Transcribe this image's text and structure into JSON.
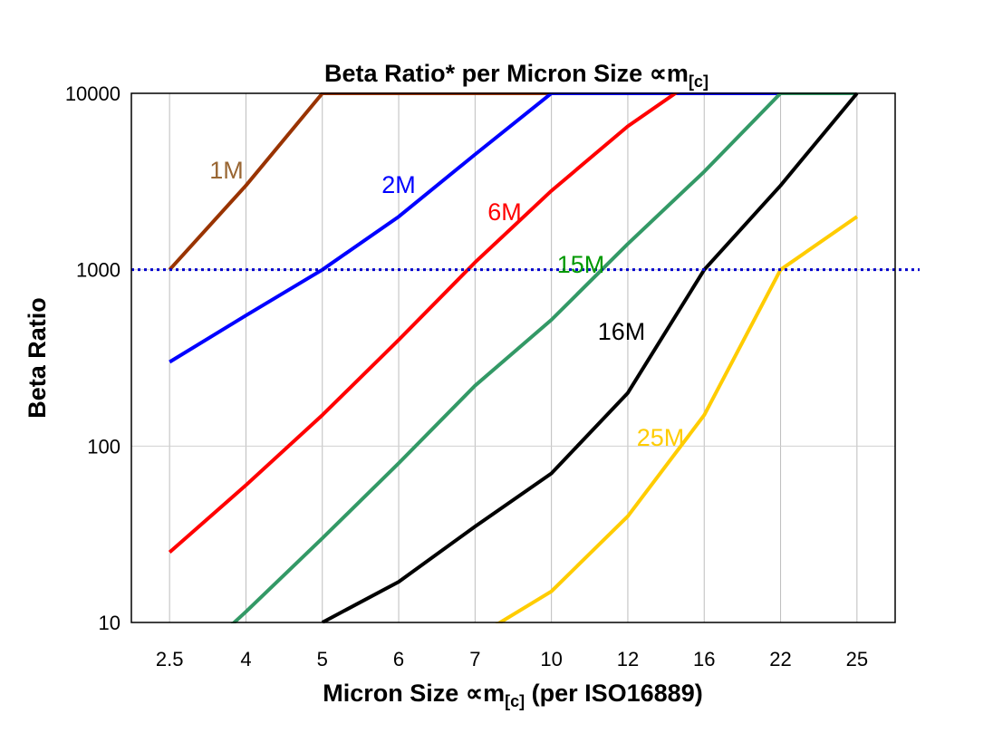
{
  "chart_data": {
    "type": "line",
    "title": {
      "main": "Beta Ratio* per Micron Size ∝m",
      "sub": "[c]"
    },
    "xlabel": {
      "main": "Micron Size ∝m",
      "sub": "[c]",
      "suffix": " (per ISO16889)"
    },
    "ylabel": "Beta Ratio",
    "y_scale": "log",
    "ylim": [
      10,
      10000
    ],
    "y_ticks": [
      "10",
      "100",
      "1000",
      "10000"
    ],
    "y_tick_values": [
      10,
      100,
      1000,
      10000
    ],
    "categories": [
      "2.5",
      "4",
      "5",
      "6",
      "7",
      "10",
      "12",
      "16",
      "22",
      "25"
    ],
    "grid": "vertical and horizontal",
    "reference_line": {
      "value": 1000,
      "color": "#0000cc",
      "style": "dotted"
    },
    "series": [
      {
        "name": "1M",
        "color": "#993300",
        "label_color": "#996633",
        "values": [
          1000,
          3000,
          10000,
          10000,
          10000,
          10000,
          10000,
          10000,
          10000,
          10000
        ]
      },
      {
        "name": "2M",
        "color": "#0000ff",
        "label_color": "#0000ff",
        "values": [
          300,
          550,
          1000,
          2000,
          4500,
          10000,
          10000,
          10000,
          10000,
          10000
        ]
      },
      {
        "name": "6M",
        "color": "#ff0000",
        "label_color": "#ff0000",
        "values": [
          25,
          60,
          150,
          400,
          1100,
          2800,
          6500,
          13000,
          13000,
          13000
        ]
      },
      {
        "name": "15M",
        "color": "#339966",
        "label_color": "#009900",
        "values": [
          4.6,
          11.5,
          30,
          80,
          220,
          520,
          1400,
          3600,
          10000,
          10000
        ]
      },
      {
        "name": "16M",
        "color": "#000000",
        "label_color": "#000000",
        "values": [
          null,
          null,
          10,
          17,
          35,
          70,
          200,
          1000,
          3000,
          10000
        ]
      },
      {
        "name": "25M",
        "color": "#ffcc00",
        "label_color": "#ffcc00",
        "values": [
          null,
          null,
          null,
          null,
          8.2,
          15,
          40,
          150,
          1000,
          2000
        ]
      }
    ]
  }
}
